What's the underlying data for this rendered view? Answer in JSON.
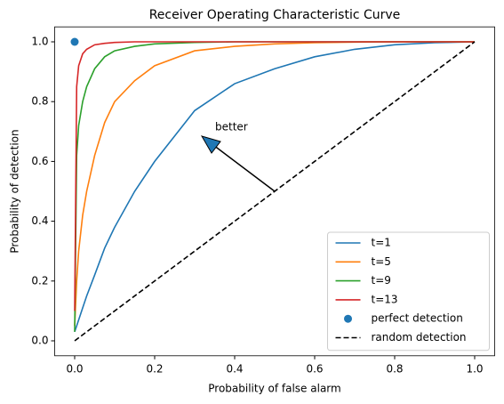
{
  "chart_data": {
    "type": "line",
    "title": "Receiver Operating Characteristic Curve",
    "xlabel": "Probability of false alarm",
    "ylabel": "Probability of detection",
    "xlim": [
      -0.05,
      1.05
    ],
    "ylim": [
      -0.05,
      1.05
    ],
    "xticks": [
      {
        "value": 0,
        "label": "0.0"
      },
      0.2,
      0.4,
      0.6,
      0.8,
      {
        "value": 1,
        "label": "1.0"
      }
    ],
    "yticks": [
      {
        "value": 0,
        "label": "0.0"
      },
      0.2,
      0.4,
      0.6,
      0.8,
      {
        "value": 1,
        "label": "1.0"
      }
    ],
    "legend": "lower right",
    "annotation": "better",
    "series": [
      {
        "name": "t=1",
        "color": "#1f77b4",
        "style": "solid",
        "x": [
          0,
          0.005,
          0.01,
          0.02,
          0.03,
          0.05,
          0.075,
          0.1,
          0.15,
          0.2,
          0.3,
          0.4,
          0.5,
          0.6,
          0.7,
          0.8,
          0.9,
          1
        ],
        "values": [
          0.03,
          0.05,
          0.07,
          0.11,
          0.15,
          0.22,
          0.31,
          0.38,
          0.5,
          0.6,
          0.77,
          0.86,
          0.91,
          0.95,
          0.975,
          0.99,
          0.997,
          1
        ]
      },
      {
        "name": "t=5",
        "color": "#ff7f0e",
        "style": "solid",
        "x": [
          0,
          0.005,
          0.01,
          0.02,
          0.03,
          0.05,
          0.075,
          0.1,
          0.15,
          0.2,
          0.3,
          0.4,
          0.5,
          0.6,
          0.7,
          0.8,
          0.9,
          1
        ],
        "values": [
          0.05,
          0.2,
          0.3,
          0.42,
          0.5,
          0.62,
          0.73,
          0.8,
          0.87,
          0.92,
          0.97,
          0.985,
          0.993,
          0.997,
          0.999,
          1,
          1,
          1
        ]
      },
      {
        "name": "t=9",
        "color": "#2ca02c",
        "style": "solid",
        "x": [
          0,
          0.005,
          0.01,
          0.02,
          0.03,
          0.05,
          0.075,
          0.1,
          0.15,
          0.2,
          0.3,
          0.4,
          0.5,
          0.6,
          0.7,
          0.8,
          0.9,
          1
        ],
        "values": [
          0.03,
          0.62,
          0.72,
          0.8,
          0.85,
          0.91,
          0.95,
          0.97,
          0.985,
          0.993,
          0.998,
          1,
          1,
          1,
          1,
          1,
          1,
          1
        ]
      },
      {
        "name": "t=13",
        "color": "#d62728",
        "style": "solid",
        "x": [
          0,
          0.005,
          0.01,
          0.02,
          0.03,
          0.05,
          0.075,
          0.1,
          0.15,
          0.2,
          0.3,
          0.4,
          0.5,
          0.6,
          0.7,
          0.8,
          0.9,
          1
        ],
        "values": [
          0.1,
          0.85,
          0.92,
          0.96,
          0.975,
          0.99,
          0.995,
          0.998,
          1,
          1,
          1,
          1,
          1,
          1,
          1,
          1,
          1,
          1
        ]
      },
      {
        "name": "perfect detection",
        "color": "#1f77b4",
        "style": "scatter",
        "x": [
          0
        ],
        "values": [
          1
        ]
      },
      {
        "name": "random detection",
        "color": "#000000",
        "style": "dashed",
        "x": [
          0,
          1
        ],
        "values": [
          0,
          1
        ]
      }
    ]
  }
}
